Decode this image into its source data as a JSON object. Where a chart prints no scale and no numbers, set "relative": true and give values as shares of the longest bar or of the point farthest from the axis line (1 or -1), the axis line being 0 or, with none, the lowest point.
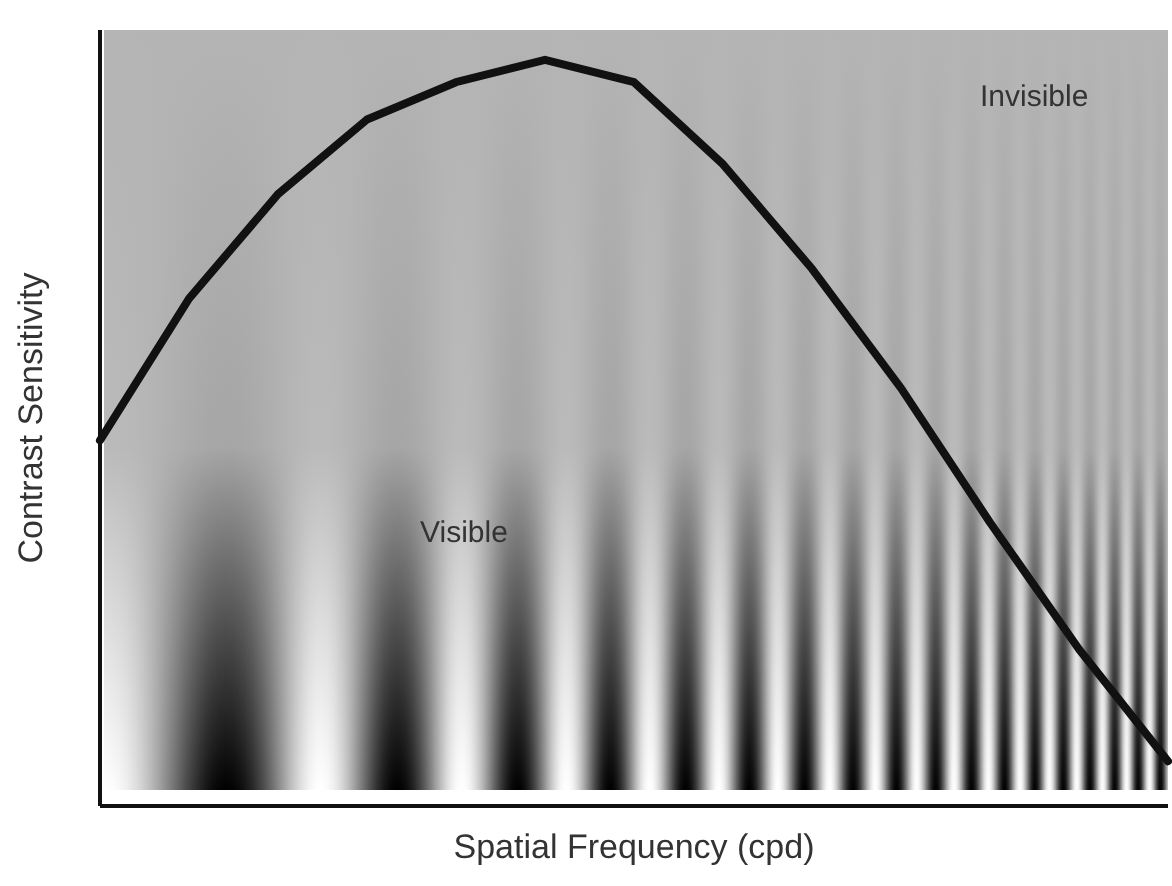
{
  "chart_data": {
    "type": "line",
    "relative": true,
    "xlabel": "Spatial Frequency (cpd)",
    "ylabel": "Contrast Sensitivity",
    "categories": [
      null,
      null,
      null,
      null,
      null,
      null,
      null,
      null,
      null,
      null,
      null,
      null,
      null
    ],
    "series": [
      {
        "color": "#111111",
        "values": [
          0.49,
          0.68,
          0.82,
          0.92,
          0.97,
          1.0,
          0.97,
          0.86,
          0.72,
          0.56,
          0.38,
          0.21,
          0.06
        ]
      }
    ],
    "annotations": [
      "Visible",
      "Invisible"
    ],
    "marker": "none",
    "line_style": "solid"
  }
}
